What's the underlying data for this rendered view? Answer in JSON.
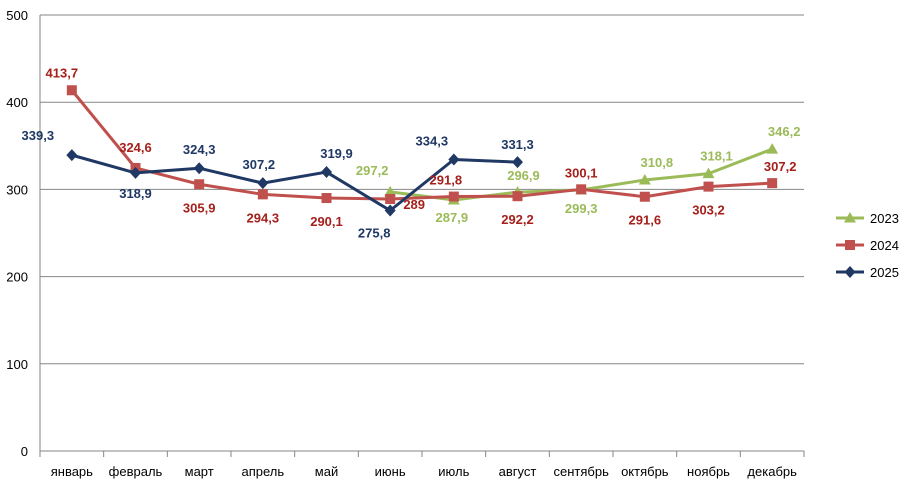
{
  "chart_data": {
    "type": "line",
    "title": "",
    "xlabel": "",
    "ylabel": "",
    "categories": [
      "январь",
      "февраль",
      "март",
      "апрель",
      "май",
      "июнь",
      "июль",
      "август",
      "сентябрь",
      "октябрь",
      "ноябрь",
      "декабрь"
    ],
    "ylim": [
      0,
      500
    ],
    "yticks": [
      0,
      100,
      200,
      300,
      400,
      500
    ],
    "grid": true,
    "legend": "right",
    "series": [
      {
        "name": "2023",
        "color": "#9BBB59",
        "marker": "triangle",
        "values": [
          null,
          null,
          null,
          null,
          null,
          297.2,
          287.9,
          296.9,
          299.3,
          310.8,
          318.1,
          346.2
        ],
        "labels": [
          null,
          null,
          null,
          null,
          null,
          "297,2",
          "287,9",
          "296,9",
          "299,3",
          "310,8",
          "318,1",
          "346,2"
        ]
      },
      {
        "name": "2024",
        "color": "#C0504D",
        "label_color": "#A5201B",
        "marker": "square",
        "values": [
          413.7,
          324.6,
          305.9,
          294.3,
          290.1,
          289,
          291.8,
          292.2,
          300.1,
          291.6,
          303.2,
          307.2
        ],
        "labels": [
          "413,7",
          "324,6",
          "305,9",
          "294,3",
          "290,1",
          "289",
          "291,8",
          "292,2",
          "300,1",
          "291,6",
          "303,2",
          "307,2"
        ]
      },
      {
        "name": "2025",
        "color": "#1F3864",
        "marker": "diamond",
        "values": [
          339.3,
          318.9,
          324.3,
          307.2,
          319.9,
          275.8,
          334.3,
          331.3,
          null,
          null,
          null,
          null
        ],
        "labels": [
          "339,3",
          "318,9",
          "324,3",
          "307,2",
          "319,9",
          "275,8",
          "334,3",
          "331,3",
          null,
          null,
          null,
          null
        ]
      }
    ]
  }
}
